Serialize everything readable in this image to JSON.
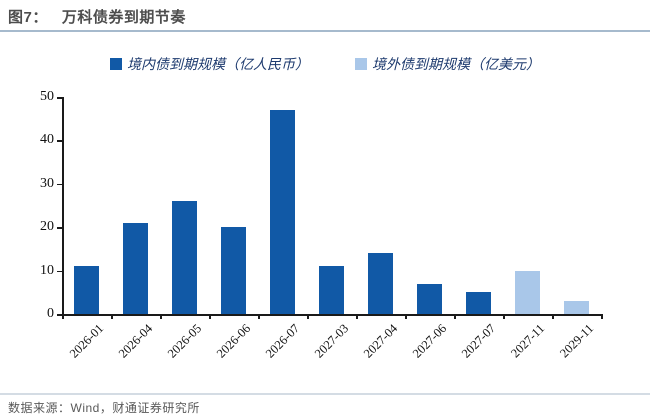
{
  "header": {
    "figure_label": "图7：",
    "title": "万科债券到期节奏"
  },
  "footer": {
    "source": "数据来源：Wind，财通证券研究所"
  },
  "colors": {
    "domestic_bar": "#1159A6",
    "overseas_bar": "#A9C7E9",
    "title_text": "#4D4D4D",
    "legend_text": "#1D3A6E",
    "axis": "#1A1A1A",
    "title_rule": "#A6BACD",
    "footer_rule": "#D4DCE4",
    "footer_text": "#595959"
  },
  "chart_data": {
    "type": "bar",
    "categories": [
      "2026-01",
      "2026-04",
      "2026-05",
      "2026-06",
      "2026-07",
      "2027-03",
      "2027-04",
      "2027-06",
      "2027-07",
      "2027-11",
      "2029-11"
    ],
    "series": [
      {
        "name": "境内债到期规模（亿人民币）",
        "color": "#1159A6",
        "values": [
          11,
          21,
          26,
          20,
          47,
          11,
          14,
          7,
          5,
          null,
          null
        ]
      },
      {
        "name": "境外债到期规模（亿美元）",
        "color": "#A9C7E9",
        "values": [
          null,
          null,
          null,
          null,
          null,
          null,
          null,
          null,
          null,
          10,
          3
        ]
      }
    ],
    "ylim": [
      0,
      50
    ],
    "yticks": [
      0,
      10,
      20,
      30,
      40,
      50
    ],
    "grid": false,
    "legend_position": "top"
  }
}
